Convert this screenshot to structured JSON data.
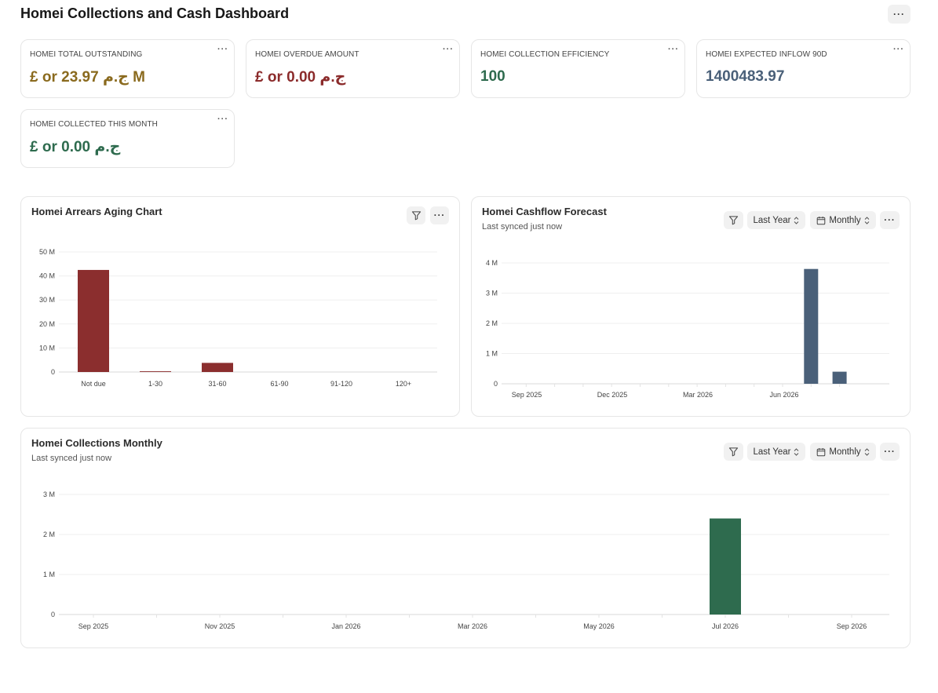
{
  "page": {
    "title": "Homei Collections and Cash Dashboard",
    "menu_label": "···"
  },
  "kpis": [
    {
      "label": "HOMEI TOTAL OUTSTANDING",
      "value": "£ or 23.97 ج.م M",
      "color": "#8a6a1e"
    },
    {
      "label": "HOMEI OVERDUE AMOUNT",
      "value": "£ or 0.00 ج.م",
      "color": "#8b2b2b"
    },
    {
      "label": "HOMEI COLLECTION EFFICIENCY",
      "value": "100",
      "color": "#2e6b4e"
    },
    {
      "label": "HOMEI EXPECTED INFLOW 90D",
      "value": "1400483.97",
      "color": "#4a6079"
    },
    {
      "label": "HOMEI COLLECTED THIS MONTH",
      "value": "£ or 0.00 ج.م",
      "color": "#2e6b4e"
    }
  ],
  "controls": {
    "period": "Last Year",
    "interval": "Monthly",
    "menu": "···"
  },
  "chart_data": [
    {
      "type": "bar",
      "title": "Homei Arrears Aging Chart",
      "categories": [
        "Not due",
        "1-30",
        "31-60",
        "61-90",
        "91-120",
        "120+"
      ],
      "values": [
        42500000,
        300000,
        3800000,
        0,
        0,
        0
      ],
      "ylim": [
        0,
        50000000
      ],
      "yticks": [
        0,
        10000000,
        20000000,
        30000000,
        40000000,
        50000000
      ],
      "ytick_labels": [
        "0",
        "10 M",
        "20 M",
        "30 M",
        "40 M",
        "50 M"
      ],
      "color": "#8b2e2e",
      "grid": true
    },
    {
      "type": "bar",
      "title": "Homei Cashflow Forecast",
      "subtitle": "Last synced just now",
      "x_labels": [
        "Sep 2025",
        "Dec 2025",
        "Mar 2026",
        "Jun 2026"
      ],
      "months": [
        "Aug 2025",
        "Sep 2025",
        "Oct 2025",
        "Nov 2025",
        "Dec 2025",
        "Jan 2026",
        "Feb 2026",
        "Mar 2026",
        "Apr 2026",
        "May 2026",
        "Jun 2026",
        "Jul 2026",
        "Aug 2026"
      ],
      "values": [
        0,
        0,
        0,
        0,
        0,
        0,
        0,
        0,
        0,
        0,
        0,
        3800000,
        400000
      ],
      "ylim": [
        0,
        4000000
      ],
      "yticks": [
        0,
        1000000,
        2000000,
        3000000,
        4000000
      ],
      "ytick_labels": [
        "0",
        "1 M",
        "2 M",
        "3 M",
        "4 M"
      ],
      "color": "#4a6079",
      "grid": true
    },
    {
      "type": "bar",
      "title": "Homei Collections Monthly",
      "subtitle": "Last synced just now",
      "x_labels": [
        "Sep 2025",
        "Nov 2025",
        "Jan 2026",
        "Mar 2026",
        "May 2026",
        "Jul 2026",
        "Sep 2026"
      ],
      "months": [
        "Sep 2025",
        "Oct 2025",
        "Nov 2025",
        "Dec 2025",
        "Jan 2026",
        "Feb 2026",
        "Mar 2026",
        "Apr 2026",
        "May 2026",
        "Jun 2026",
        "Jul 2026",
        "Aug 2026",
        "Sep 2026"
      ],
      "values": [
        0,
        0,
        0,
        0,
        0,
        0,
        0,
        0,
        0,
        0,
        2400000,
        0,
        0
      ],
      "ylim": [
        0,
        3000000
      ],
      "yticks": [
        0,
        1000000,
        2000000,
        3000000
      ],
      "ytick_labels": [
        "0",
        "1 M",
        "2 M",
        "3 M"
      ],
      "color": "#2e6b4e",
      "grid": true
    }
  ]
}
